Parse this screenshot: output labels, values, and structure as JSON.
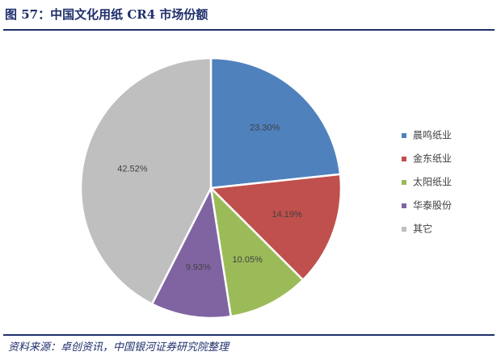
{
  "figure": {
    "title": "图 57：中国文化用纸 CR4 市场份额",
    "source": "资料来源：卓创资讯，中国银河证券研究院整理"
  },
  "chart_data": {
    "type": "pie",
    "title": "",
    "categories": [
      "晨鸣纸业",
      "金东纸业",
      "太阳纸业",
      "华泰股份",
      "其它"
    ],
    "values": [
      23.3,
      14.19,
      10.05,
      9.93,
      42.52
    ],
    "labels": [
      "23.30%",
      "14.19%",
      "10.05%",
      "9.93%",
      "42.52%"
    ],
    "colors": [
      "#4f81bd",
      "#c0504d",
      "#9bbb59",
      "#8064a2",
      "#bfbfbf"
    ],
    "start_angle_deg": 0,
    "direction": "clockwise",
    "legend_position": "right"
  }
}
